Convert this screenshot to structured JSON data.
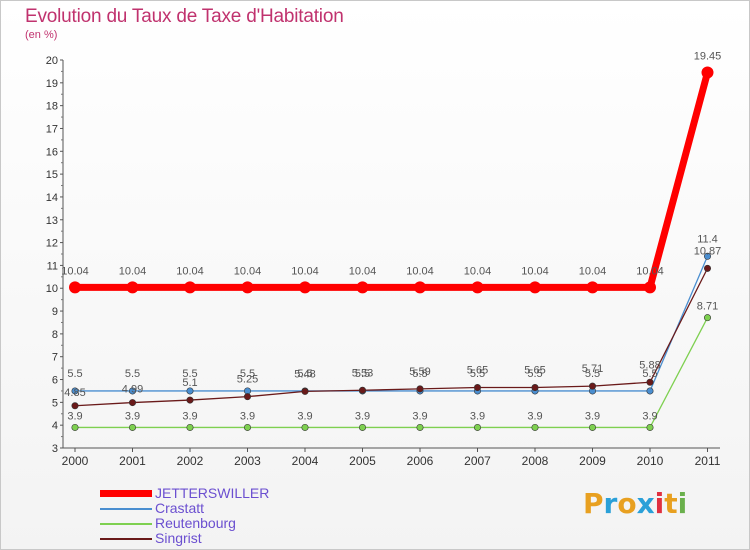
{
  "title": "Evolution du Taux de Taxe d'Habitation",
  "subtitle": "(en %)",
  "logo": {
    "text": "Proxiti",
    "letters": [
      "P",
      "r",
      "o",
      "x",
      "i",
      "t",
      "i"
    ],
    "colors": [
      "#e8a020",
      "#2aa0d8",
      "#e8a020",
      "#2aa0d8",
      "#e03040",
      "#e8a020",
      "#6ab04c"
    ]
  },
  "chart_data": {
    "type": "line",
    "title": "Evolution du Taux de Taxe d'Habitation",
    "ylabel": "(en %)",
    "xlabel": "",
    "ylim": [
      3,
      20
    ],
    "yticks": [
      "3",
      "4",
      "5",
      "6",
      "7",
      "8",
      "9",
      "10",
      "11",
      "12",
      "13",
      "14",
      "15",
      "16",
      "17",
      "18",
      "19",
      "20"
    ],
    "categories": [
      "2000",
      "2001",
      "2002",
      "2003",
      "2004",
      "2005",
      "2006",
      "2007",
      "2008",
      "2009",
      "2010",
      "2011"
    ],
    "series": [
      {
        "name": "JETTERSWILLER",
        "color": "#ff0000",
        "values": [
          10.04,
          10.04,
          10.04,
          10.04,
          10.04,
          10.04,
          10.04,
          10.04,
          10.04,
          10.04,
          10.04,
          19.45
        ],
        "labels": [
          "10.04",
          "10.04",
          "10.04",
          "10.04",
          "10.04",
          "10.04",
          "10.04",
          "10.04",
          "10.04",
          "10.04",
          "10.04",
          "19.45"
        ]
      },
      {
        "name": "Crastatt",
        "color": "#4a8ed0",
        "values": [
          5.5,
          5.5,
          5.5,
          5.5,
          5.5,
          5.5,
          5.5,
          5.5,
          5.5,
          5.5,
          5.5,
          11.4
        ],
        "labels": [
          "5.5",
          "5.5",
          "5.5",
          "5.5",
          "5.5",
          "5.5",
          "5.5",
          "5.5",
          "5.5",
          "5.5",
          "5.5",
          "11.4"
        ]
      },
      {
        "name": "Reutenbourg",
        "color": "#7ed050",
        "values": [
          3.9,
          3.9,
          3.9,
          3.9,
          3.9,
          3.9,
          3.9,
          3.9,
          3.9,
          3.9,
          3.9,
          8.71
        ],
        "labels": [
          "3.9",
          "3.9",
          "3.9",
          "3.9",
          "3.9",
          "3.9",
          "3.9",
          "3.9",
          "3.9",
          "3.9",
          "3.9",
          "8.71"
        ]
      },
      {
        "name": "Singrist",
        "color": "#6a1a1a",
        "values": [
          4.85,
          4.99,
          5.1,
          5.25,
          5.48,
          5.53,
          5.59,
          5.65,
          5.65,
          5.71,
          5.88,
          10.87
        ],
        "labels": [
          "4.85",
          "4.99",
          "5.1",
          "5.25",
          "5.48",
          "5.53",
          "5.59",
          "5.65",
          "5.65",
          "5.71",
          "5.88",
          "10.87"
        ]
      }
    ],
    "legend_position": "bottom-left",
    "grid": false
  }
}
